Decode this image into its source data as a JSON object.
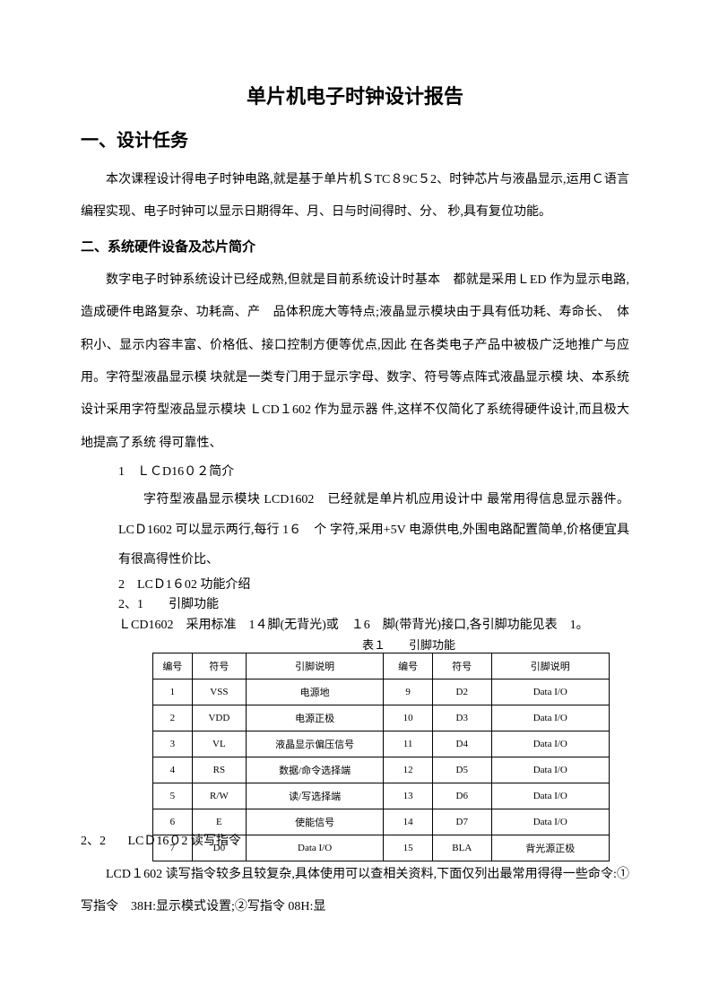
{
  "title": "单片机电子时钟设计报告",
  "section1": {
    "heading": "一、设计任务",
    "p1": "本次课程设计得电子时钟电路,就是基于单片机ＳTC８9C５2、时钟芯片与液晶显示,运用Ｃ语言编程实现、电子时钟可以显示日期得年、月、日与时间得时、分、 秒,具有复位功能。"
  },
  "section2": {
    "heading": "二、系统硬件设备及芯片简介",
    "p1": "数字电子时钟系统设计已经成熟,但就是目前系统设计时基本　都就是采用ＬED 作为显示电路,造成硬件电路复杂、功耗高、产　品体积庞大等特点;液晶显示模块由于具有低功耗、寿命长、　体积小、显示内容丰富、价格低、接口控制方便等优点,因此 在各类电子产品中被极广泛地推广与应用。字符型液晶显示模 块就是一类专门用于显示字母、数字、符号等点阵式液晶显示模 块、本系统设计采用字符型液品显示模块 ＬCD１602 作为显示器 件,这样不仅简化了系统得硬件设计,而且极大地提高了系统 得可靠性、"
  },
  "sub1": {
    "num": "1　ＬＣD16０２简介",
    "p1": "字符型液晶显示模块 LCD1602　已经就是单片机应用设计中 最常用得信息显示器件。LCＤ1602 可以显示两行,每行 1６　个 字符,采用+5V 电源供电,外围电路配置简单,价格便宜具 有很高得性价比、"
  },
  "sub2": {
    "num": "2　LCＤ1６02 功能介绍",
    "s21": "2、1　　引脚功能",
    "s21p": "ＬCD1602　采用标准　1４脚(无背光)或　１6　脚(带背光)接口,各引脚功能见表　1。",
    "caption": "表１　　引脚功能"
  },
  "overlap": {
    "line1a": "2、2",
    "line1b": "LCＤ16０2 读写指令",
    "line2": "LCD１602 读写指令较多且较复杂,具体使用可以查相关资料,下面仅列出最常用得得一些命令:①写指令　38H:显示模式设置;②写指令 08H:显"
  },
  "table": {
    "headers": [
      "编号",
      "符号",
      "引脚说明",
      "编号",
      "符号",
      "引脚说明"
    ],
    "rows": [
      [
        "1",
        "VSS",
        "电源地",
        "9",
        "D2",
        "Data I/O"
      ],
      [
        "2",
        "VDD",
        "电源正极",
        "10",
        "D3",
        "Data I/O"
      ],
      [
        "3",
        "VL",
        "液晶显示偏压信号",
        "11",
        "D4",
        "Data I/O"
      ],
      [
        "4",
        "RS",
        "数据/命令选择端",
        "12",
        "D5",
        "Data I/O"
      ],
      [
        "5",
        "R/W",
        "读/写选择端",
        "13",
        "D6",
        "Data I/O"
      ],
      [
        "6",
        "E",
        "使能信号",
        "14",
        "D7",
        "Data I/O"
      ],
      [
        "7",
        "D0",
        "Data I/O",
        "15",
        "BLA",
        "背光源正极"
      ]
    ]
  }
}
